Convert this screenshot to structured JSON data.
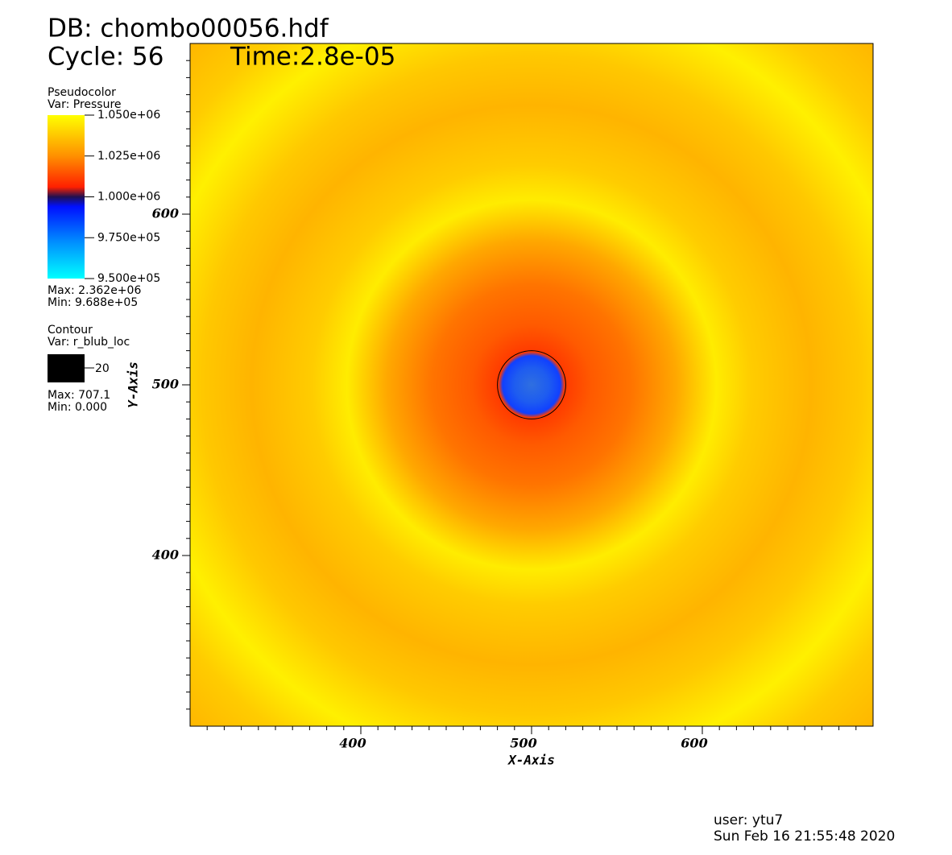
{
  "chart_data": {
    "type": "pseudocolor",
    "title": "DB: chombo00056.hdf",
    "cycle": "Cycle: 56",
    "time": "Time:2.8e-05",
    "xlabel": "X-Axis",
    "ylabel": "Y-Axis",
    "xlim": [
      300,
      700
    ],
    "ylim": [
      300,
      700
    ],
    "xticks": [
      400,
      500,
      600
    ],
    "yticks": [
      400,
      500,
      600
    ],
    "pseudocolor": {
      "plot": "Pseudocolor",
      "var": "Var: Pressure",
      "colorbar_lim": [
        950000,
        1050000
      ],
      "colorbar_ticks": [
        {
          "value": 1050000,
          "label": "1.050e+06"
        },
        {
          "value": 1025000,
          "label": "1.025e+06"
        },
        {
          "value": 1000000,
          "label": "1.000e+06"
        },
        {
          "value": 975000,
          "label": "9.750e+05"
        },
        {
          "value": 950000,
          "label": "9.500e+05"
        }
      ],
      "max": "Max: 2.362e+06",
      "min": "Min: 9.688e+05"
    },
    "contour": {
      "plot": "Contour",
      "var": "Var: r_blub_loc",
      "levels": [
        20
      ],
      "max": "Max: 707.1",
      "min": "Min: 0.000"
    },
    "user": "user: ytu7",
    "date": "Sun Feb 16 21:55:48 2020"
  }
}
